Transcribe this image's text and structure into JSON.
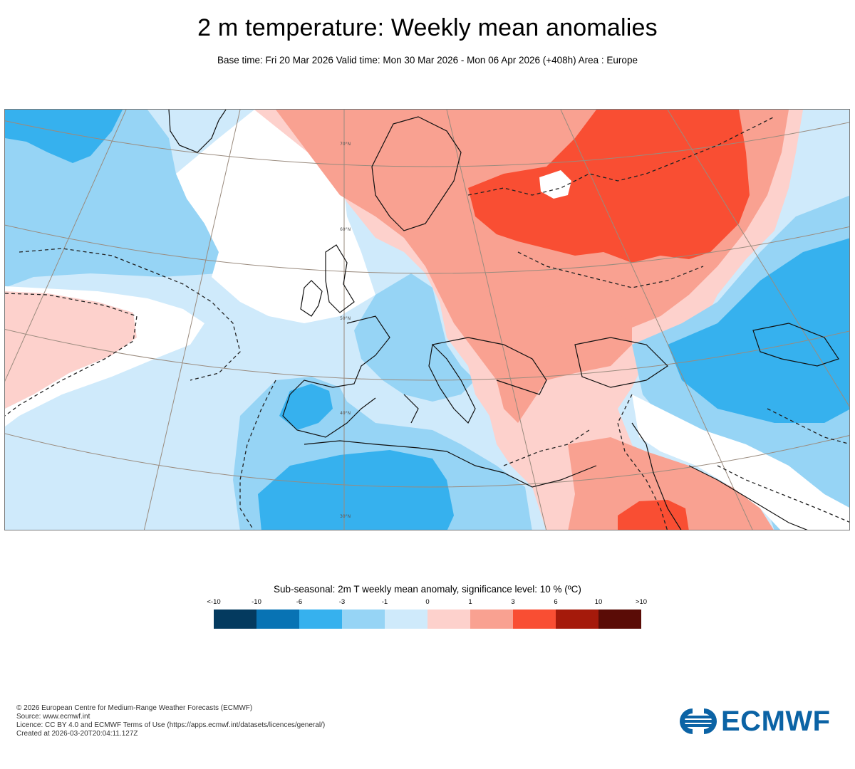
{
  "header": {
    "title": "2 m temperature: Weekly mean anomalies",
    "subtitle": "Base time: Fri 20 Mar 2026 Valid time: Mon 30 Mar 2026 - Mon 06 Apr 2026 (+408h) Area : Europe"
  },
  "map": {
    "area": "Europe",
    "latitude_labels": [
      "70°N",
      "60°N",
      "50°N",
      "40°N",
      "30°N"
    ]
  },
  "legend": {
    "title": "Sub-seasonal: 2m T weekly mean anomaly, significance level: 10 % (ºC)",
    "labels": [
      "<-10",
      "-10",
      "-6",
      "-3",
      "-1",
      "0",
      "1",
      "3",
      "6",
      "10",
      ">10"
    ],
    "colors": [
      "#043a5f",
      "#0873b4",
      "#36b1ee",
      "#96d4f5",
      "#cfeafb",
      "#fdd1cc",
      "#f9a191",
      "#f94e33",
      "#a51a0b",
      "#5a0c06"
    ]
  },
  "footer": {
    "lines": [
      "© 2026 European Centre for Medium-Range Weather Forecasts (ECMWF)",
      "Source: www.ecmwf.int",
      "Licence: CC BY 4.0 and ECMWF Terms of Use (https://apps.ecmwf.int/datasets/licences/general/)",
      "Created at 2026-03-20T20:04:11.127Z"
    ],
    "brand": "ECMWF",
    "brand_color": "#0b63a5"
  }
}
